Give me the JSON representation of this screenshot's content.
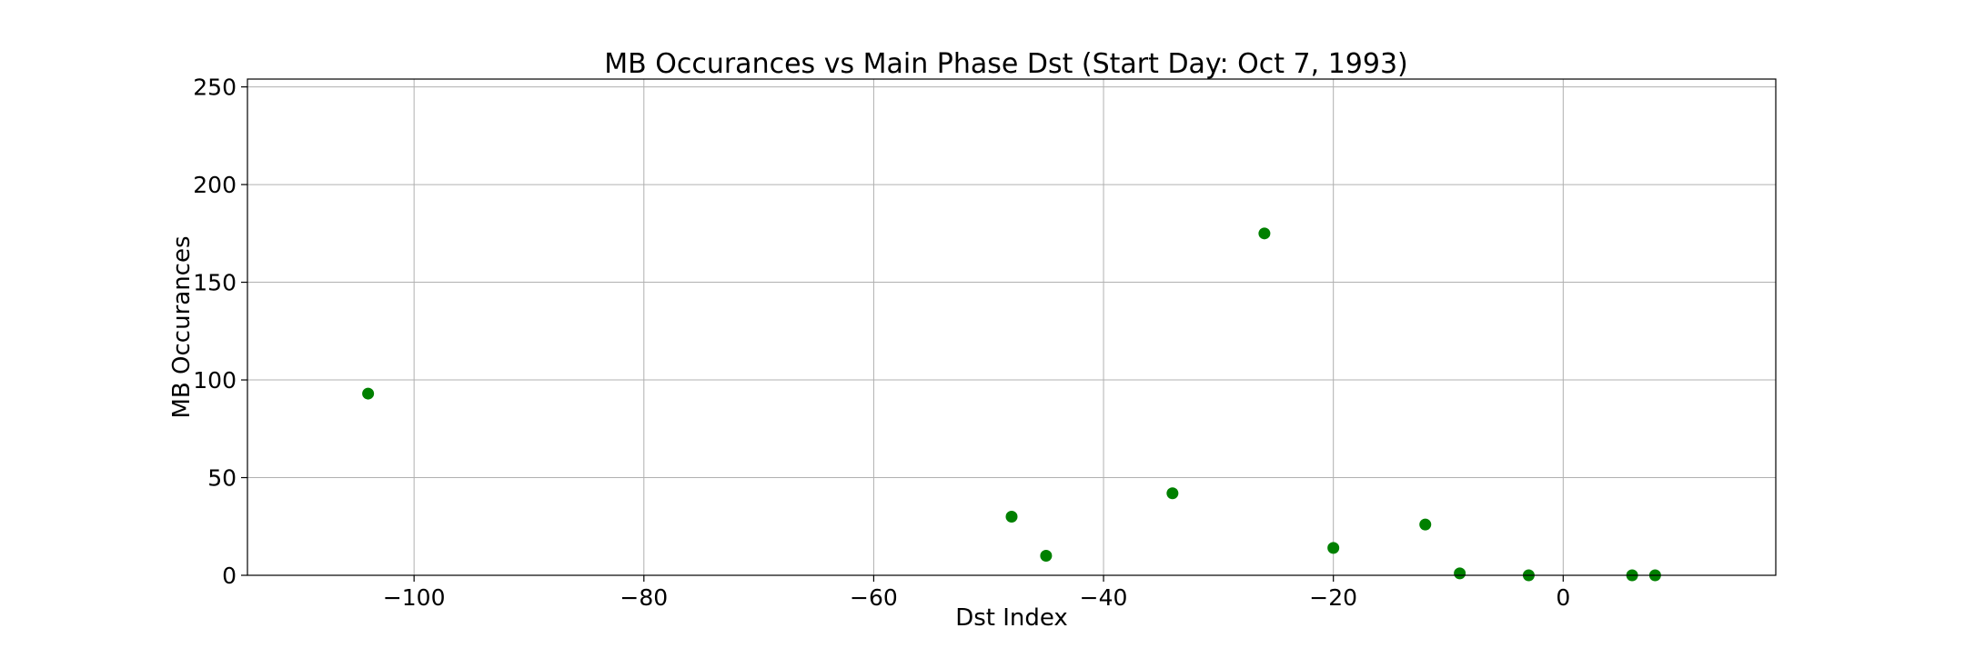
{
  "chart_data": {
    "type": "scatter",
    "title": "MB Occurances vs Main Phase Dst (Start Day: Oct 7, 1993)",
    "xlabel": "Dst Index",
    "ylabel": "MB Occurances",
    "xlim": [
      -114.5,
      18.5
    ],
    "ylim": [
      0,
      254
    ],
    "xticks": [
      -100,
      -80,
      -60,
      -40,
      -20,
      0
    ],
    "xtick_labels": [
      "−100",
      "−80",
      "−60",
      "−40",
      "−20",
      "0"
    ],
    "yticks": [
      0,
      50,
      100,
      150,
      200,
      250
    ],
    "ytick_labels": [
      "0",
      "50",
      "100",
      "150",
      "200",
      "250"
    ],
    "grid": true,
    "marker_color": "#008000",
    "points": [
      {
        "x": -104,
        "y": 93
      },
      {
        "x": -48,
        "y": 30
      },
      {
        "x": -45,
        "y": 10
      },
      {
        "x": -34,
        "y": 42
      },
      {
        "x": -26,
        "y": 175
      },
      {
        "x": -20,
        "y": 14
      },
      {
        "x": -12,
        "y": 26
      },
      {
        "x": -9,
        "y": 1
      },
      {
        "x": -3,
        "y": 0
      },
      {
        "x": 6,
        "y": 0
      },
      {
        "x": 8,
        "y": 0
      }
    ]
  }
}
